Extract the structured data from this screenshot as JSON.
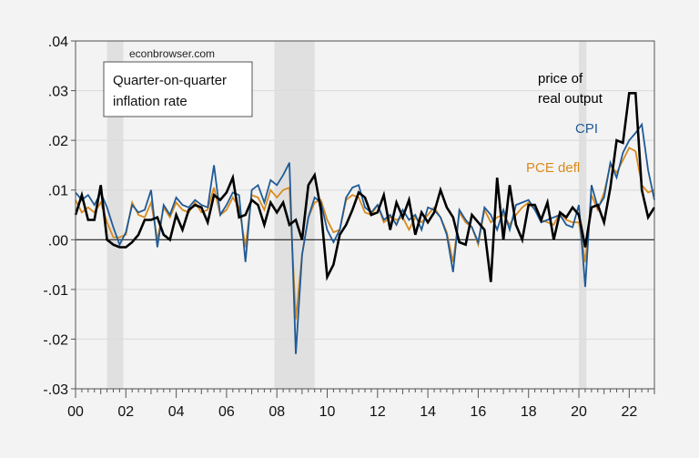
{
  "chart_data": {
    "type": "line",
    "title": "",
    "xlabel": "",
    "ylabel": "",
    "frequency": "quarterly",
    "start": "2000Q1",
    "xlim": [
      2000,
      2023
    ],
    "ylim": [
      -0.03,
      0.04
    ],
    "y_ticks": [
      ".04",
      ".03",
      ".02",
      ".01",
      ".00",
      "-.01",
      "-.02",
      "-.03"
    ],
    "y_tick_values": [
      0.04,
      0.03,
      0.02,
      0.01,
      0.0,
      -0.01,
      -0.02,
      -0.03
    ],
    "x_ticks": [
      "00",
      "02",
      "04",
      "06",
      "08",
      "10",
      "12",
      "14",
      "16",
      "18",
      "20",
      "22"
    ],
    "x_tick_values": [
      2000,
      2002,
      2004,
      2006,
      2008,
      2010,
      2012,
      2014,
      2016,
      2018,
      2020,
      2022
    ],
    "grid": true,
    "zero_line": true,
    "recessions": [
      [
        2001.25,
        2001.9
      ],
      [
        2007.9,
        2009.5
      ],
      [
        2020.0,
        2020.3
      ]
    ],
    "watermark": "econbrowser.com",
    "annotation_box": [
      "Quarter-on-quarter",
      "inflation rate"
    ],
    "series": [
      {
        "name": "price of real output",
        "label_lines": [
          "price of",
          "real output"
        ],
        "color": "#000000",
        "values": [
          0.005,
          0.009,
          0.004,
          0.004,
          0.011,
          0.0,
          -0.001,
          -0.0015,
          -0.0015,
          -0.0005,
          0.001,
          0.004,
          0.004,
          0.0045,
          0.001,
          0.0,
          0.005,
          0.002,
          0.006,
          0.007,
          0.0065,
          0.0035,
          0.009,
          0.008,
          0.0095,
          0.0125,
          0.0045,
          0.005,
          0.008,
          0.007,
          0.003,
          0.0075,
          0.0055,
          0.0075,
          0.003,
          0.004,
          0.0,
          0.011,
          0.013,
          0.006,
          -0.0075,
          -0.005,
          0.001,
          0.003,
          0.006,
          0.0095,
          0.0085,
          0.005,
          0.0055,
          0.009,
          0.002,
          0.0075,
          0.0045,
          0.008,
          0.001,
          0.0055,
          0.0035,
          0.0055,
          0.01,
          0.0065,
          0.0045,
          -0.0005,
          -0.001,
          0.005,
          0.0035,
          0.002,
          -0.0085,
          0.0125,
          0.0,
          0.011,
          0.003,
          0.0,
          0.007,
          0.007,
          0.004,
          0.0075,
          0.0,
          0.0055,
          0.0045,
          0.0065,
          0.005,
          -0.0015,
          0.0065,
          0.007,
          0.0035,
          0.0105,
          0.02,
          0.0195,
          0.0295,
          0.0295,
          0.01,
          0.0045,
          0.0065
        ]
      },
      {
        "name": "CPI",
        "label_lines": [
          "CPI"
        ],
        "color": "#1f5a96",
        "values": [
          0.0095,
          0.008,
          0.009,
          0.007,
          0.0095,
          0.0065,
          0.0025,
          -0.001,
          0.0015,
          0.007,
          0.0055,
          0.006,
          0.01,
          -0.0015,
          0.007,
          0.005,
          0.0085,
          0.007,
          0.0065,
          0.008,
          0.007,
          0.0065,
          0.015,
          0.005,
          0.007,
          0.0095,
          0.009,
          -0.0045,
          0.01,
          0.011,
          0.0075,
          0.012,
          0.011,
          0.013,
          0.0155,
          -0.023,
          -0.003,
          0.0045,
          0.0085,
          0.0075,
          0.002,
          -0.0005,
          0.002,
          0.0085,
          0.0105,
          0.011,
          0.0065,
          0.0055,
          0.007,
          0.004,
          0.005,
          0.003,
          0.006,
          0.004,
          0.005,
          0.002,
          0.0065,
          0.006,
          0.0045,
          0.001,
          -0.0065,
          0.006,
          0.004,
          0.0025,
          -0.0005,
          0.0065,
          0.005,
          0.002,
          0.006,
          0.002,
          0.007,
          0.0075,
          0.008,
          0.006,
          0.0035,
          0.004,
          0.0045,
          0.005,
          0.003,
          0.0025,
          0.007,
          -0.0095,
          0.011,
          0.0065,
          0.0085,
          0.0155,
          0.0125,
          0.0175,
          0.02,
          0.0215,
          0.0232,
          0.014,
          0.008
        ]
      },
      {
        "name": "PCE defl",
        "label_lines": [
          "PCE defl"
        ],
        "color": "#d98a1c",
        "values": [
          0.008,
          0.0055,
          0.0065,
          0.0055,
          0.0075,
          0.0035,
          0.0005,
          0.0005,
          0.001,
          0.0075,
          0.005,
          0.0045,
          0.0075,
          0.0,
          0.0065,
          0.0045,
          0.0075,
          0.006,
          0.0055,
          0.0075,
          0.0055,
          0.006,
          0.0105,
          0.005,
          0.006,
          0.0085,
          0.0065,
          -0.0015,
          0.009,
          0.0085,
          0.006,
          0.01,
          0.0085,
          0.01,
          0.0105,
          -0.016,
          -0.003,
          0.0045,
          0.0075,
          0.008,
          0.004,
          0.0015,
          0.002,
          0.008,
          0.009,
          0.0085,
          0.0055,
          0.005,
          0.007,
          0.0035,
          0.0045,
          0.004,
          0.0045,
          0.002,
          0.0045,
          0.0035,
          0.005,
          0.0065,
          0.0045,
          0.0015,
          -0.0045,
          0.0055,
          0.0035,
          0.0025,
          -0.001,
          0.006,
          0.0035,
          0.0045,
          0.005,
          0.003,
          0.005,
          0.0065,
          0.0075,
          0.006,
          0.004,
          0.0035,
          0.003,
          0.0055,
          0.004,
          0.0035,
          0.0035,
          -0.0045,
          0.009,
          0.006,
          0.0095,
          0.015,
          0.0135,
          0.016,
          0.0185,
          0.0178,
          0.011,
          0.0095,
          0.01
        ]
      }
    ]
  }
}
